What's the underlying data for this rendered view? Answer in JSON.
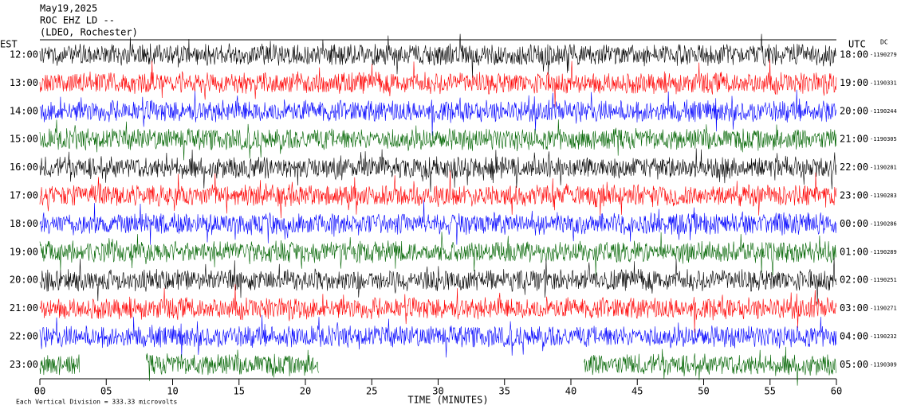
{
  "chart_data": {
    "type": "helicorder",
    "title": "May19,2025",
    "station": "ROC EHZ LD --",
    "network": "(LDEO, Rochester)",
    "left_axis_label": "EST",
    "right_axis_label": "UTC",
    "dc_label": "DC",
    "x_label": "TIME (MINUTES)",
    "footnote": "Each Vertical Division =  333.33 microvolts",
    "xlim": [
      0,
      60
    ],
    "xticks": [
      {
        "value": 0,
        "label": "00"
      },
      {
        "value": 5,
        "label": "05"
      },
      10,
      15,
      20,
      25,
      30,
      35,
      40,
      45,
      50,
      55,
      60
    ],
    "rows": [
      {
        "est": "12:00",
        "utc": "18:00",
        "dc": "-1190279",
        "color": "#000000"
      },
      {
        "est": "13:00",
        "utc": "19:00",
        "dc": "-1190331",
        "color": "#ff0000"
      },
      {
        "est": "14:00",
        "utc": "20:00",
        "dc": "-1190244",
        "color": "#0000ff"
      },
      {
        "est": "15:00",
        "utc": "21:00",
        "dc": "-1190305",
        "color": "#006400"
      },
      {
        "est": "16:00",
        "utc": "22:00",
        "dc": "-1190281",
        "color": "#000000"
      },
      {
        "est": "17:00",
        "utc": "23:00",
        "dc": "-1190283",
        "color": "#ff0000"
      },
      {
        "est": "18:00",
        "utc": "00:00",
        "dc": "-1190286",
        "color": "#0000ff"
      },
      {
        "est": "19:00",
        "utc": "01:00",
        "dc": "-1190289",
        "color": "#006400"
      },
      {
        "est": "20:00",
        "utc": "02:00",
        "dc": "-1190251",
        "color": "#000000"
      },
      {
        "est": "21:00",
        "utc": "03:00",
        "dc": "-1190271",
        "color": "#ff0000"
      },
      {
        "est": "22:00",
        "utc": "04:00",
        "dc": "-1190232",
        "color": "#0000ff"
      },
      {
        "est": "23:00",
        "utc": "05:00",
        "dc": "-1190309",
        "color": "#006400",
        "segments": [
          [
            0,
            3
          ],
          [
            8,
            21
          ],
          [
            41,
            60
          ]
        ]
      }
    ]
  }
}
